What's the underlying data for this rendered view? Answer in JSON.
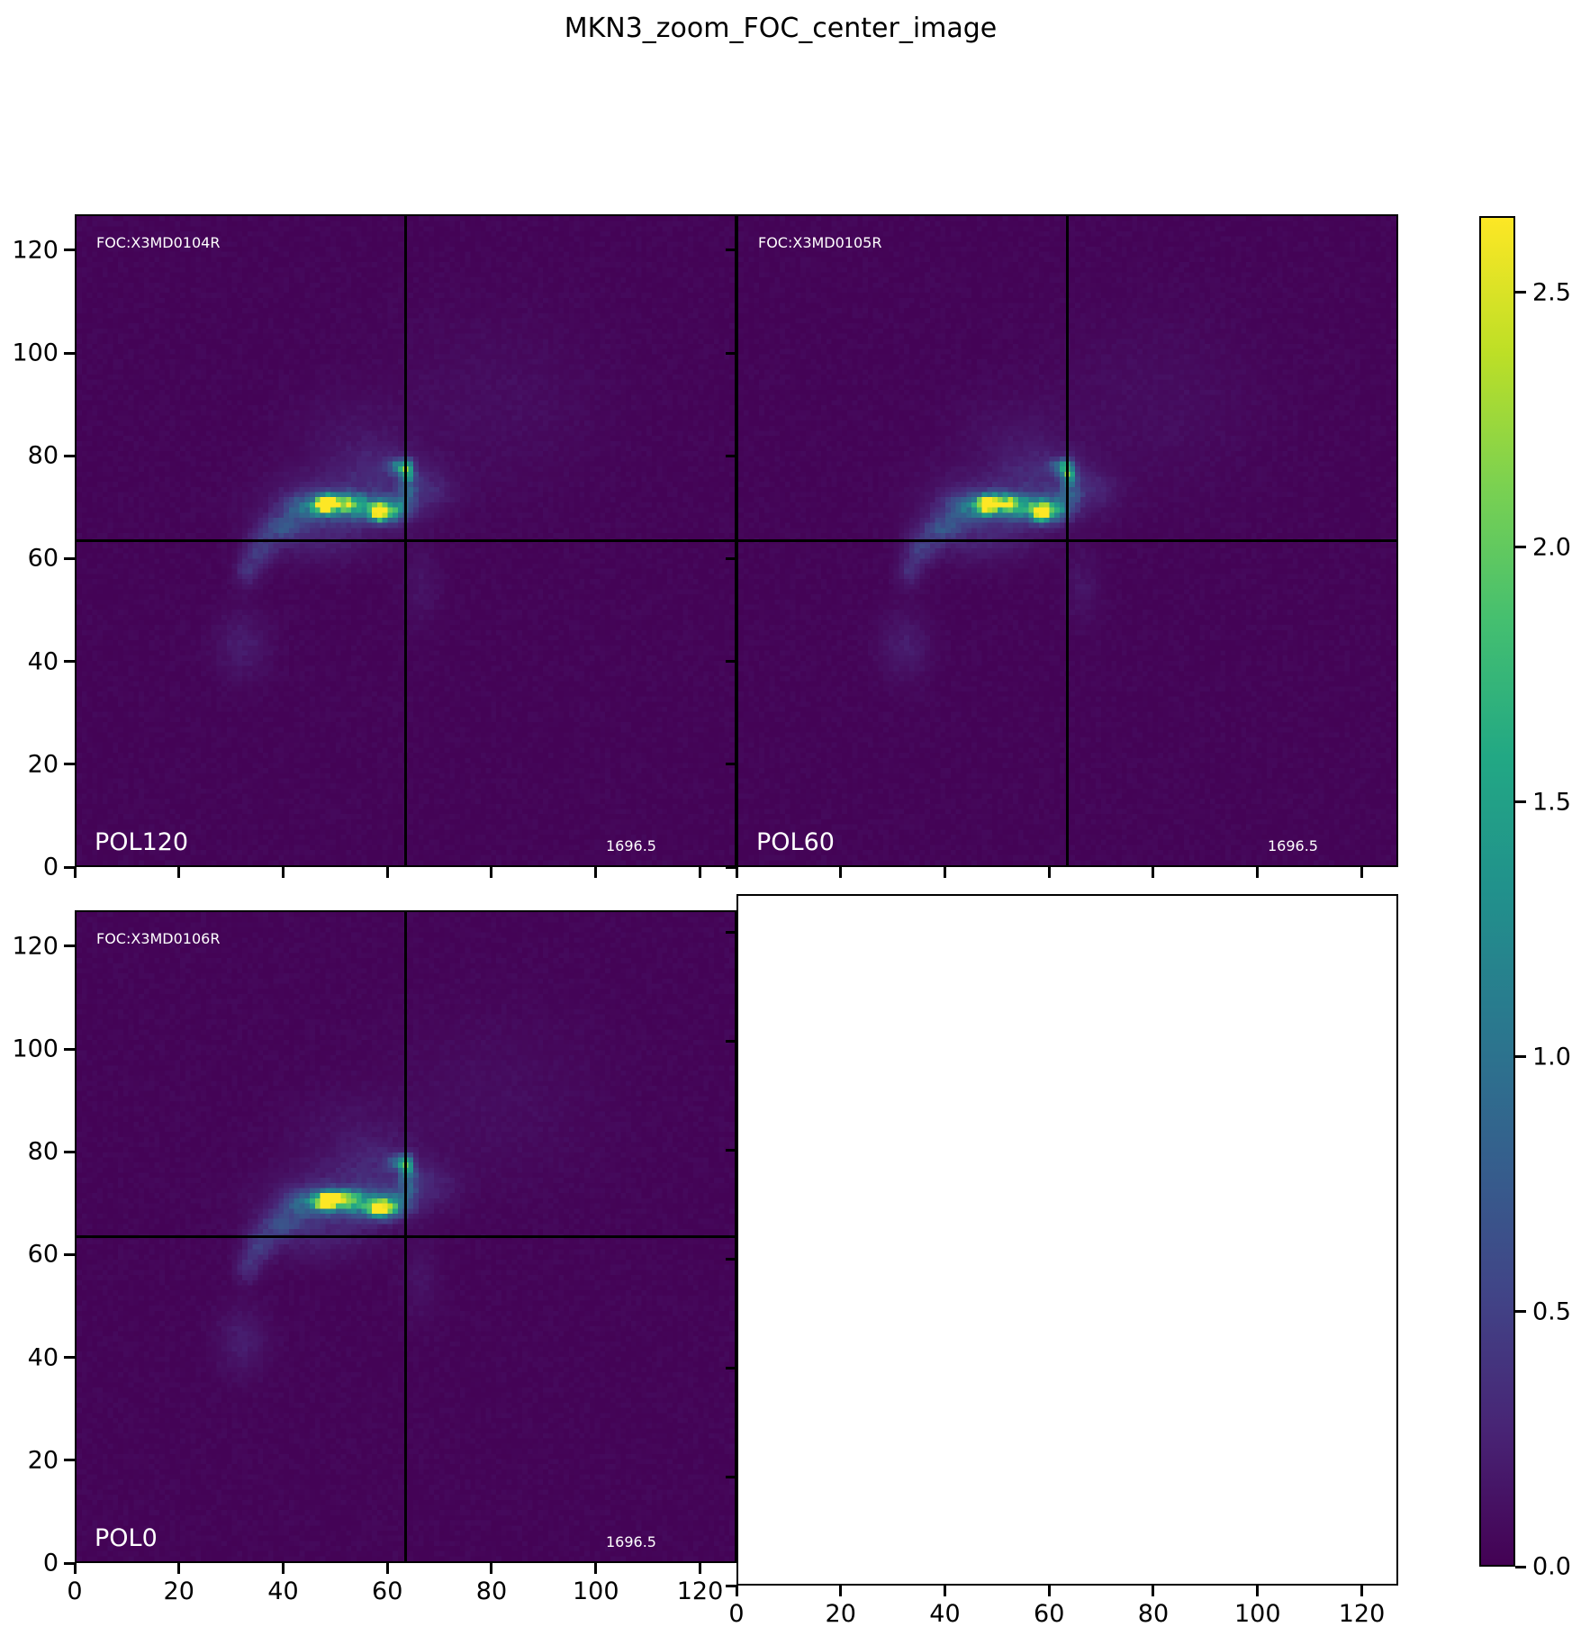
{
  "figure": {
    "title": "MKN3_zoom_FOC_center_image",
    "background_color": "#ffffff",
    "annotation_text_color": "#ffffff"
  },
  "chart_data": {
    "type": "heatmap",
    "title": "MKN3_zoom_FOC_center_image",
    "grid": [
      2,
      2
    ],
    "colormap": "viridis",
    "axis": {
      "x_range": [
        0,
        127
      ],
      "y_range": [
        0,
        127
      ],
      "x_ticks": [
        0,
        20,
        40,
        60,
        80,
        100,
        120
      ],
      "y_ticks": [
        0,
        20,
        40,
        60,
        80,
        100,
        120
      ]
    },
    "colorbar": {
      "vmin": 0.0,
      "vmax": 2.65,
      "tick_values": [
        0.0,
        0.5,
        1.0,
        1.5,
        2.0,
        2.5
      ],
      "tick_labels": [
        "0.0",
        "0.5",
        "1.0",
        "1.5",
        "2.0",
        "2.5"
      ],
      "colormap": "viridis",
      "min_color": "#440154",
      "max_color": "#fde725"
    },
    "panels": [
      {
        "pol_label": "POL120",
        "dataset_label": "FOC:X3MD0104R",
        "value_label": "1696.5",
        "crosshair_x": 63.5,
        "crosshair_y": 63.5,
        "empty": false
      },
      {
        "pol_label": "POL60",
        "dataset_label": "FOC:X3MD0105R",
        "value_label": "1696.5",
        "crosshair_x": 63.5,
        "crosshair_y": 63.5,
        "empty": false
      },
      {
        "pol_label": "POL0",
        "dataset_label": "FOC:X3MD0106R",
        "value_label": "1696.5",
        "crosshair_x": 63.5,
        "crosshair_y": 63.5,
        "empty": false
      },
      {
        "pol_label": "",
        "dataset_label": "",
        "value_label": "",
        "empty": true
      }
    ],
    "emission_features": [
      {
        "x": 47.5,
        "y": 70.0,
        "sx": 1.3,
        "sy": 1.1,
        "amp": 2.55
      },
      {
        "x": 50.5,
        "y": 70.5,
        "sx": 2.2,
        "sy": 1.1,
        "amp": 1.6
      },
      {
        "x": 58.0,
        "y": 68.5,
        "sx": 1.3,
        "sy": 1.1,
        "amp": 2.35
      },
      {
        "x": 54.5,
        "y": 69.5,
        "sx": 4.0,
        "sy": 1.6,
        "amp": 1.1
      },
      {
        "x": 60.5,
        "y": 69.0,
        "sx": 2.0,
        "sy": 1.5,
        "amp": 1.0
      },
      {
        "x": 44.0,
        "y": 69.5,
        "sx": 3.0,
        "sy": 1.8,
        "amp": 0.75
      },
      {
        "x": 63.2,
        "y": 76.5,
        "sx": 0.9,
        "sy": 1.5,
        "amp": 1.55
      },
      {
        "x": 61.5,
        "y": 77.5,
        "sx": 1.4,
        "sy": 0.9,
        "amp": 0.85
      },
      {
        "x": 63.5,
        "y": 72.5,
        "sx": 1.5,
        "sy": 2.0,
        "amp": 0.45
      },
      {
        "x": 39.0,
        "y": 65.5,
        "sx": 2.5,
        "sy": 1.8,
        "amp": 0.5
      },
      {
        "x": 35.0,
        "y": 61.5,
        "sx": 2.0,
        "sy": 2.2,
        "amp": 0.4
      },
      {
        "x": 32.5,
        "y": 57.0,
        "sx": 1.6,
        "sy": 2.0,
        "amp": 0.3
      },
      {
        "x": 50.0,
        "y": 70.0,
        "sx": 9.0,
        "sy": 4.5,
        "amp": 0.28
      },
      {
        "x": 46.0,
        "y": 63.0,
        "sx": 7.0,
        "sy": 3.5,
        "amp": 0.14
      },
      {
        "x": 58.0,
        "y": 77.0,
        "sx": 5.0,
        "sy": 4.0,
        "amp": 0.16
      },
      {
        "x": 67.0,
        "y": 73.0,
        "sx": 4.0,
        "sy": 3.0,
        "amp": 0.2
      },
      {
        "x": 80.0,
        "y": 90.0,
        "sx": 14.0,
        "sy": 12.0,
        "amp": 0.06
      },
      {
        "x": 31.5,
        "y": 42.5,
        "sx": 3.5,
        "sy": 4.5,
        "amp": 0.17
      },
      {
        "x": 66.0,
        "y": 54.0,
        "sx": 2.5,
        "sy": 5.0,
        "amp": 0.1
      },
      {
        "x": 52.0,
        "y": 83.0,
        "sx": 8.0,
        "sy": 6.0,
        "amp": 0.08
      }
    ],
    "background_level": 0.03
  }
}
